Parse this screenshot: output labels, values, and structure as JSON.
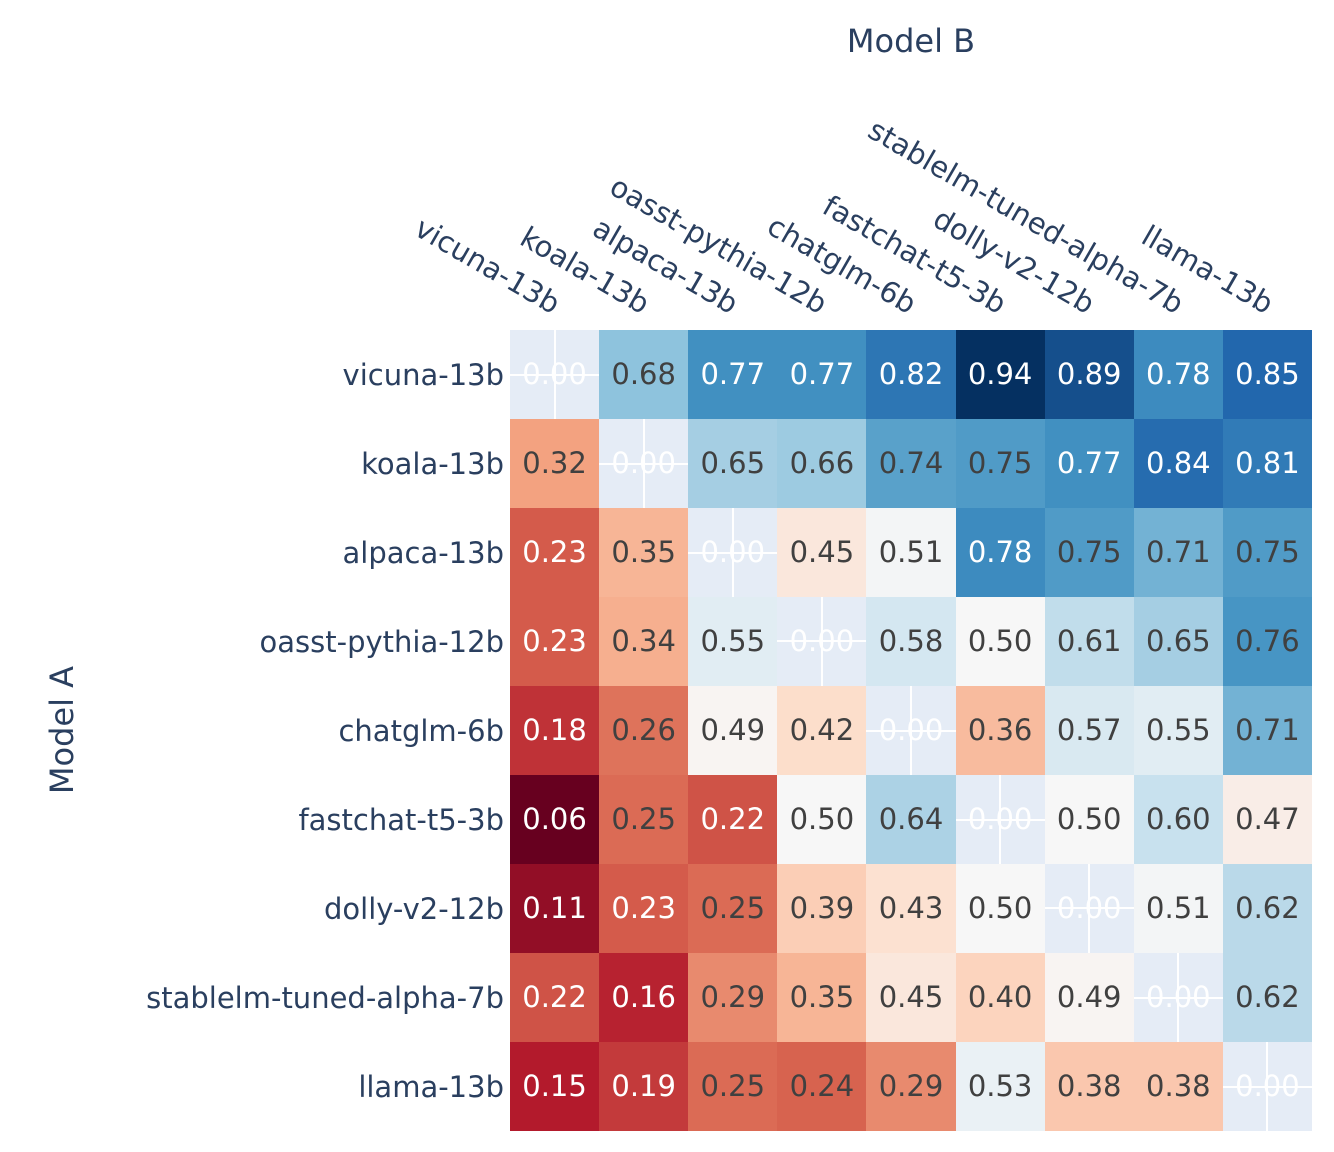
{
  "figure": {
    "background": "#ffffff",
    "label_color": "#2a3f5f"
  },
  "chart_data": {
    "type": "heatmap",
    "x_axis_title": "Model B",
    "y_axis_title": "Model A",
    "categories_x": [
      "vicuna-13b",
      "koala-13b",
      "alpaca-13b",
      "oasst-pythia-12b",
      "chatglm-6b",
      "fastchat-t5-3b",
      "dolly-v2-12b",
      "stablelm-tuned-alpha-7b",
      "llama-13b"
    ],
    "categories_y": [
      "vicuna-13b",
      "koala-13b",
      "alpaca-13b",
      "oasst-pythia-12b",
      "chatglm-6b",
      "fastchat-t5-3b",
      "dolly-v2-12b",
      "stablelm-tuned-alpha-7b",
      "llama-13b"
    ],
    "values": [
      [
        0.0,
        0.68,
        0.77,
        0.77,
        0.82,
        0.94,
        0.89,
        0.78,
        0.85
      ],
      [
        0.32,
        0.0,
        0.65,
        0.66,
        0.74,
        0.75,
        0.77,
        0.84,
        0.81
      ],
      [
        0.23,
        0.35,
        0.0,
        0.45,
        0.51,
        0.78,
        0.75,
        0.71,
        0.75
      ],
      [
        0.23,
        0.34,
        0.55,
        0.0,
        0.58,
        0.5,
        0.61,
        0.65,
        0.76
      ],
      [
        0.18,
        0.26,
        0.49,
        0.42,
        0.0,
        0.36,
        0.57,
        0.55,
        0.71
      ],
      [
        0.06,
        0.25,
        0.22,
        0.5,
        0.64,
        0.0,
        0.5,
        0.6,
        0.47
      ],
      [
        0.11,
        0.23,
        0.25,
        0.39,
        0.43,
        0.5,
        0.0,
        0.51,
        0.62
      ],
      [
        0.22,
        0.16,
        0.29,
        0.35,
        0.45,
        0.4,
        0.49,
        0.0,
        0.62
      ],
      [
        0.15,
        0.19,
        0.25,
        0.24,
        0.29,
        0.53,
        0.38,
        0.38,
        0.0
      ]
    ],
    "value_format": "2-decimals",
    "colorscale_rdbu": [
      "#67001f",
      "#b2182b",
      "#d6604d",
      "#f4a582",
      "#fddbc7",
      "#f7f7f7",
      "#d1e5f0",
      "#92c5de",
      "#4393c3",
      "#2166ac",
      "#053061"
    ],
    "color_domain": [
      0.06,
      0.94
    ],
    "diagonal": {
      "display_value": "0.00",
      "background": "#e5ecf6",
      "gridline_color": "#ffffff",
      "text_color": "#ffffff"
    },
    "text_colors": {
      "light": "#ffffff",
      "dark": "#404040",
      "light_rule": "normalized value below 0.2 or above 0.8"
    },
    "legend_position": "none",
    "grid": "off"
  }
}
